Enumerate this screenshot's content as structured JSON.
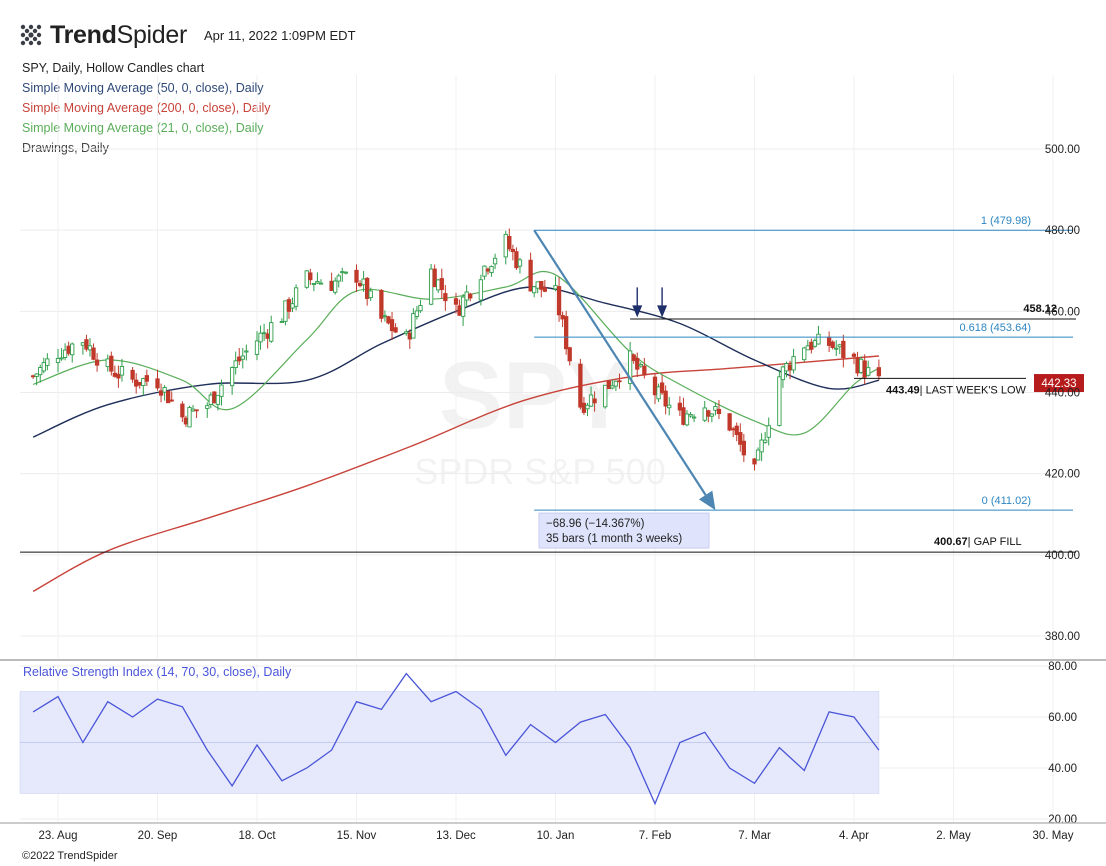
{
  "header": {
    "brand_bold": "Trend",
    "brand_light": "Spider",
    "timestamp": "Apr 11, 2022 1:09PM EDT",
    "logo_icon": "trendspider-dots-icon"
  },
  "indicators": [
    {
      "label": "SPY, Daily, Hollow Candles chart",
      "color": "#222222"
    },
    {
      "label": "Simple Moving Average (50, 0, close), Daily",
      "color": "#2f4a7a"
    },
    {
      "label": "Simple Moving Average (200, 0, close), Daily",
      "color": "#c8433a"
    },
    {
      "label": "Simple Moving Average (21, 0, close), Daily",
      "color": "#5aae5a"
    },
    {
      "label": "Drawings, Daily",
      "color": "#444444"
    }
  ],
  "watermark": {
    "symbol": "SPY",
    "name": "SPDR S&P 500"
  },
  "footer": {
    "copyright": "©2022 TrendSpider"
  },
  "colors": {
    "up": "#2e9e4a",
    "down": "#c0392b",
    "sma50": "#1f2f5a",
    "sma200": "#c8433a",
    "sma21": "#5aae5a",
    "fib": "#2e86c1",
    "rsi": "#4a55d8",
    "rsi_band": "#e6e9fb",
    "price_tag": "#b71c1c"
  },
  "chart_data": [
    {
      "type": "line",
      "title": "",
      "ylim": [
        370,
        505
      ],
      "y_ticks": [
        380,
        400,
        420,
        440,
        460,
        480,
        500
      ],
      "y_tick_labels": [
        "380.00",
        "400.00",
        "420.00",
        "440.00",
        "460.00",
        "480.00",
        "500.00"
      ],
      "x_ticks": [
        {
          "label": "23. Aug",
          "date": "2021-08-23"
        },
        {
          "label": "20. Sep",
          "date": "2021-09-20"
        },
        {
          "label": "18. Oct",
          "date": "2021-10-18"
        },
        {
          "label": "15. Nov",
          "date": "2021-11-15"
        },
        {
          "label": "13. Dec",
          "date": "2021-12-13"
        },
        {
          "label": "10. Jan",
          "date": "2022-01-10"
        },
        {
          "label": "7. Feb",
          "date": "2022-02-07"
        },
        {
          "label": "7. Mar",
          "date": "2022-03-07"
        },
        {
          "label": "4. Apr",
          "date": "2022-04-04"
        },
        {
          "label": "2. May",
          "date": "2022-05-02"
        },
        {
          "label": "30. May",
          "date": "2022-05-30"
        }
      ],
      "closes": [
        {
          "date": "2021-08-16",
          "value": 444
        },
        {
          "date": "2021-08-23",
          "value": 450
        },
        {
          "date": "2021-08-30",
          "value": 453
        },
        {
          "date": "2021-09-06",
          "value": 446
        },
        {
          "date": "2021-09-13",
          "value": 443
        },
        {
          "date": "2021-09-20",
          "value": 443
        },
        {
          "date": "2021-09-27",
          "value": 434
        },
        {
          "date": "2021-10-04",
          "value": 437
        },
        {
          "date": "2021-10-11",
          "value": 446
        },
        {
          "date": "2021-10-18",
          "value": 453
        },
        {
          "date": "2021-10-25",
          "value": 459
        },
        {
          "date": "2021-11-01",
          "value": 468
        },
        {
          "date": "2021-11-08",
          "value": 467
        },
        {
          "date": "2021-11-15",
          "value": 469
        },
        {
          "date": "2021-11-22",
          "value": 458
        },
        {
          "date": "2021-11-29",
          "value": 453
        },
        {
          "date": "2021-12-06",
          "value": 470
        },
        {
          "date": "2021-12-13",
          "value": 460
        },
        {
          "date": "2021-12-20",
          "value": 470
        },
        {
          "date": "2021-12-27",
          "value": 477
        },
        {
          "date": "2022-01-03",
          "value": 467
        },
        {
          "date": "2022-01-10",
          "value": 464
        },
        {
          "date": "2022-01-17",
          "value": 437
        },
        {
          "date": "2022-01-24",
          "value": 441
        },
        {
          "date": "2022-01-31",
          "value": 448
        },
        {
          "date": "2022-02-07",
          "value": 440
        },
        {
          "date": "2022-02-14",
          "value": 434
        },
        {
          "date": "2022-02-21",
          "value": 437
        },
        {
          "date": "2022-02-28",
          "value": 432
        },
        {
          "date": "2022-03-07",
          "value": 420
        },
        {
          "date": "2022-03-14",
          "value": 444
        },
        {
          "date": "2022-03-21",
          "value": 452
        },
        {
          "date": "2022-03-28",
          "value": 452
        },
        {
          "date": "2022-04-04",
          "value": 448
        },
        {
          "date": "2022-04-11",
          "value": 442.33
        }
      ],
      "sma_21": [
        {
          "date": "2021-08-16",
          "value": 442
        },
        {
          "date": "2021-09-06",
          "value": 448
        },
        {
          "date": "2021-09-27",
          "value": 443
        },
        {
          "date": "2021-10-11",
          "value": 436
        },
        {
          "date": "2021-11-01",
          "value": 453
        },
        {
          "date": "2021-11-15",
          "value": 465
        },
        {
          "date": "2021-12-06",
          "value": 463
        },
        {
          "date": "2021-12-27",
          "value": 466
        },
        {
          "date": "2022-01-10",
          "value": 469
        },
        {
          "date": "2022-01-31",
          "value": 450
        },
        {
          "date": "2022-02-14",
          "value": 442
        },
        {
          "date": "2022-03-07",
          "value": 433
        },
        {
          "date": "2022-03-21",
          "value": 430
        },
        {
          "date": "2022-04-04",
          "value": 442
        },
        {
          "date": "2022-04-11",
          "value": 446
        }
      ],
      "sma_50": [
        {
          "date": "2021-08-16",
          "value": 429
        },
        {
          "date": "2021-09-06",
          "value": 437
        },
        {
          "date": "2021-10-04",
          "value": 442
        },
        {
          "date": "2021-11-01",
          "value": 443
        },
        {
          "date": "2021-11-22",
          "value": 452
        },
        {
          "date": "2021-12-13",
          "value": 460
        },
        {
          "date": "2022-01-03",
          "value": 466
        },
        {
          "date": "2022-01-24",
          "value": 462
        },
        {
          "date": "2022-02-14",
          "value": 457
        },
        {
          "date": "2022-03-07",
          "value": 448
        },
        {
          "date": "2022-03-28",
          "value": 441
        },
        {
          "date": "2022-04-11",
          "value": 443
        }
      ],
      "sma_200": [
        {
          "date": "2021-08-16",
          "value": 391
        },
        {
          "date": "2021-09-06",
          "value": 401
        },
        {
          "date": "2021-10-04",
          "value": 409
        },
        {
          "date": "2021-11-01",
          "value": 417
        },
        {
          "date": "2021-12-01",
          "value": 427
        },
        {
          "date": "2022-01-01",
          "value": 438
        },
        {
          "date": "2022-02-01",
          "value": 444
        },
        {
          "date": "2022-03-01",
          "value": 446
        },
        {
          "date": "2022-04-11",
          "value": 449
        }
      ],
      "annotations": {
        "fib_levels": [
          {
            "label": "1 (479.98)",
            "value": 479.98
          },
          {
            "label": "0.618 (453.64)",
            "value": 453.64
          },
          {
            "label": "0 (411.02)",
            "value": 411.02
          }
        ],
        "levels": [
          {
            "value_label": "458.12",
            "text": "",
            "value": 458.12
          },
          {
            "value_label": "443.49",
            "text": "| LAST WEEK'S LOW",
            "value": 443.49
          },
          {
            "value_label": "400.67",
            "text": "| GAP FILL",
            "value": 400.67
          }
        ],
        "measure": {
          "change_label": "−68.96 (−14.367%)",
          "bars_label": "35 bars (1 month 3 weeks)",
          "from": {
            "date": "2022-01-04",
            "value": 479.98
          },
          "to": {
            "date": "2022-02-24",
            "value": 411.02
          }
        },
        "arrows_down": [
          {
            "date": "2022-02-02",
            "value": 459
          },
          {
            "date": "2022-02-09",
            "value": 459
          }
        ],
        "last_price": {
          "label": "442.33",
          "value": 442.33
        }
      }
    },
    {
      "type": "line",
      "title": "Relative Strength Index (14, 70, 30, close), Daily",
      "ylim": [
        20,
        80
      ],
      "y_ticks": [
        20,
        40,
        60,
        80
      ],
      "y_tick_labels": [
        "20.00",
        "40.00",
        "60.00",
        "80.00"
      ],
      "band": [
        30,
        70
      ],
      "midline": 50,
      "series": [
        {
          "values": [
            {
              "date": "2021-08-16",
              "value": 62
            },
            {
              "date": "2021-08-23",
              "value": 68
            },
            {
              "date": "2021-08-30",
              "value": 50
            },
            {
              "date": "2021-09-06",
              "value": 66
            },
            {
              "date": "2021-09-13",
              "value": 60
            },
            {
              "date": "2021-09-20",
              "value": 67
            },
            {
              "date": "2021-09-27",
              "value": 64
            },
            {
              "date": "2021-10-04",
              "value": 47
            },
            {
              "date": "2021-10-11",
              "value": 33
            },
            {
              "date": "2021-10-18",
              "value": 49
            },
            {
              "date": "2021-10-25",
              "value": 35
            },
            {
              "date": "2021-11-01",
              "value": 40
            },
            {
              "date": "2021-11-08",
              "value": 47
            },
            {
              "date": "2021-11-15",
              "value": 66
            },
            {
              "date": "2021-11-22",
              "value": 63
            },
            {
              "date": "2021-11-29",
              "value": 77
            },
            {
              "date": "2021-12-06",
              "value": 66
            },
            {
              "date": "2021-12-13",
              "value": 70
            },
            {
              "date": "2021-12-20",
              "value": 63
            },
            {
              "date": "2021-12-27",
              "value": 45
            },
            {
              "date": "2022-01-03",
              "value": 57
            },
            {
              "date": "2022-01-10",
              "value": 50
            },
            {
              "date": "2022-01-17",
              "value": 58
            },
            {
              "date": "2022-01-24",
              "value": 61
            },
            {
              "date": "2022-01-31",
              "value": 48
            },
            {
              "date": "2022-02-07",
              "value": 26
            },
            {
              "date": "2022-02-14",
              "value": 50
            },
            {
              "date": "2022-02-21",
              "value": 54
            },
            {
              "date": "2022-02-28",
              "value": 40
            },
            {
              "date": "2022-03-07",
              "value": 34
            },
            {
              "date": "2022-03-14",
              "value": 48
            },
            {
              "date": "2022-03-21",
              "value": 39
            },
            {
              "date": "2022-03-28",
              "value": 62
            },
            {
              "date": "2022-04-04",
              "value": 60
            },
            {
              "date": "2022-04-11",
              "value": 47
            }
          ]
        }
      ]
    }
  ]
}
